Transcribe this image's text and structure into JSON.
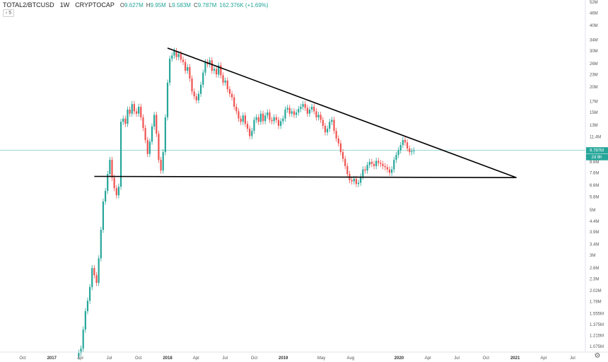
{
  "header": {
    "symbol": "TOTAL2/BTCUSD",
    "interval": "1W",
    "exchange": "CRYPTOCAP",
    "open_label": "O",
    "open": "9.627M",
    "high_label": "H",
    "high": "9.95M",
    "low_label": "L",
    "low": "9.583M",
    "close_label": "C",
    "close": "9.787M",
    "change": "162.376K (+1.69%)",
    "sub_indicator": "5"
  },
  "price_tag": {
    "value": "9.787M",
    "timer": "2d 8h",
    "color": "#26a69a"
  },
  "colors": {
    "up": "#26a69a",
    "down": "#ef5350",
    "trendline": "#000000",
    "price_line": "#26a69a"
  },
  "icons": {
    "settings": "gear-icon"
  },
  "chart_data": {
    "type": "candlestick",
    "title": "TOTAL2/BTCUSD",
    "y_scale": "log",
    "y_unit": "M",
    "y_ticks": [
      "1.075M",
      "1.215M",
      "1.375M",
      "1.555M",
      "1.78M",
      "2.02M",
      "2.3M",
      "2.6M",
      "3M",
      "3.4M",
      "3.9M",
      "4.4M",
      "5M",
      "5.8M",
      "6.6M",
      "7.6M",
      "8.6M",
      "9.787M",
      "11.4M",
      "13M",
      "15M",
      "17M",
      "20M",
      "23M",
      "26M",
      "30M",
      "34M",
      "40M",
      "46M",
      "52M"
    ],
    "x_ticks": [
      {
        "label": "Oct",
        "year": false
      },
      {
        "label": "2017",
        "year": true
      },
      {
        "label": "Apr",
        "year": false
      },
      {
        "label": "Jul",
        "year": false
      },
      {
        "label": "Oct",
        "year": false
      },
      {
        "label": "2018",
        "year": true
      },
      {
        "label": "Apr",
        "year": false
      },
      {
        "label": "Jul",
        "year": false
      },
      {
        "label": "Oct",
        "year": false
      },
      {
        "label": "2019",
        "year": true
      },
      {
        "label": "May",
        "year": false
      },
      {
        "label": "Aug",
        "year": false
      },
      {
        "label": "2020",
        "year": true
      },
      {
        "label": "Apr",
        "year": false
      },
      {
        "label": "Jul",
        "year": false
      },
      {
        "label": "Oct",
        "year": false
      },
      {
        "label": "2021",
        "year": true
      },
      {
        "label": "Apr",
        "year": false
      },
      {
        "label": "Jul",
        "year": false
      }
    ],
    "closes": [
      1.0,
      1.05,
      1.3,
      1.6,
      1.8,
      2.1,
      2.6,
      2.4,
      2.2,
      2.9,
      4.0,
      5.5,
      6.2,
      7.5,
      8.8,
      7.2,
      6.4,
      5.9,
      6.5,
      13.5,
      14.0,
      13.2,
      15.5,
      14.8,
      16.5,
      15.2,
      14.8,
      16.0,
      14.2,
      12.6,
      11.0,
      9.4,
      10.8,
      12.8,
      14.6,
      11.8,
      8.8,
      7.8,
      9.6,
      14.2,
      21.0,
      27.5,
      28.5,
      30.0,
      28.0,
      29.0,
      27.2,
      26.5,
      24.0,
      25.0,
      22.0,
      19.0,
      18.0,
      17.2,
      18.5,
      20.5,
      23.5,
      26.5,
      25.8,
      27.0,
      24.0,
      24.5,
      23.0,
      25.5,
      22.8,
      21.0,
      21.5,
      19.5,
      18.5,
      17.8,
      16.0,
      15.2,
      14.0,
      13.5,
      14.5,
      13.2,
      12.5,
      11.5,
      12.2,
      13.8,
      14.2,
      13.5,
      14.8,
      13.6,
      14.5,
      15.0,
      13.8,
      13.6,
      14.2,
      13.8,
      12.9,
      13.6,
      14.0,
      15.5,
      15.8,
      14.8,
      15.2,
      14.6,
      15.0,
      15.6,
      16.0,
      16.5,
      15.8,
      14.8,
      15.5,
      16.0,
      15.2,
      14.2,
      14.6,
      13.8,
      12.9,
      12.0,
      12.5,
      13.5,
      13.8,
      12.2,
      11.2,
      10.6,
      9.6,
      8.9,
      8.2,
      7.5,
      7.0,
      6.9,
      7.1,
      6.7,
      6.8,
      7.3,
      7.9,
      7.8,
      8.3,
      8.6,
      8.4,
      8.2,
      8.7,
      8.5,
      8.4,
      8.2,
      8.1,
      7.9,
      7.6,
      7.9,
      8.8,
      9.3,
      9.8,
      10.4,
      11.0,
      10.7,
      10.0,
      9.6,
      9.7,
      9.79
    ],
    "trendlines": [
      {
        "name": "upper-trendline",
        "from": {
          "date": "2018-01-01",
          "value": 31.0
        },
        "to": {
          "date": "2021-01-05",
          "value": 7.2
        }
      },
      {
        "name": "lower-trendline",
        "from": {
          "date": "2017-05-15",
          "value": 7.3
        },
        "to": {
          "date": "2021-01-05",
          "value": 7.2
        }
      }
    ],
    "last_price": 9.787
  }
}
